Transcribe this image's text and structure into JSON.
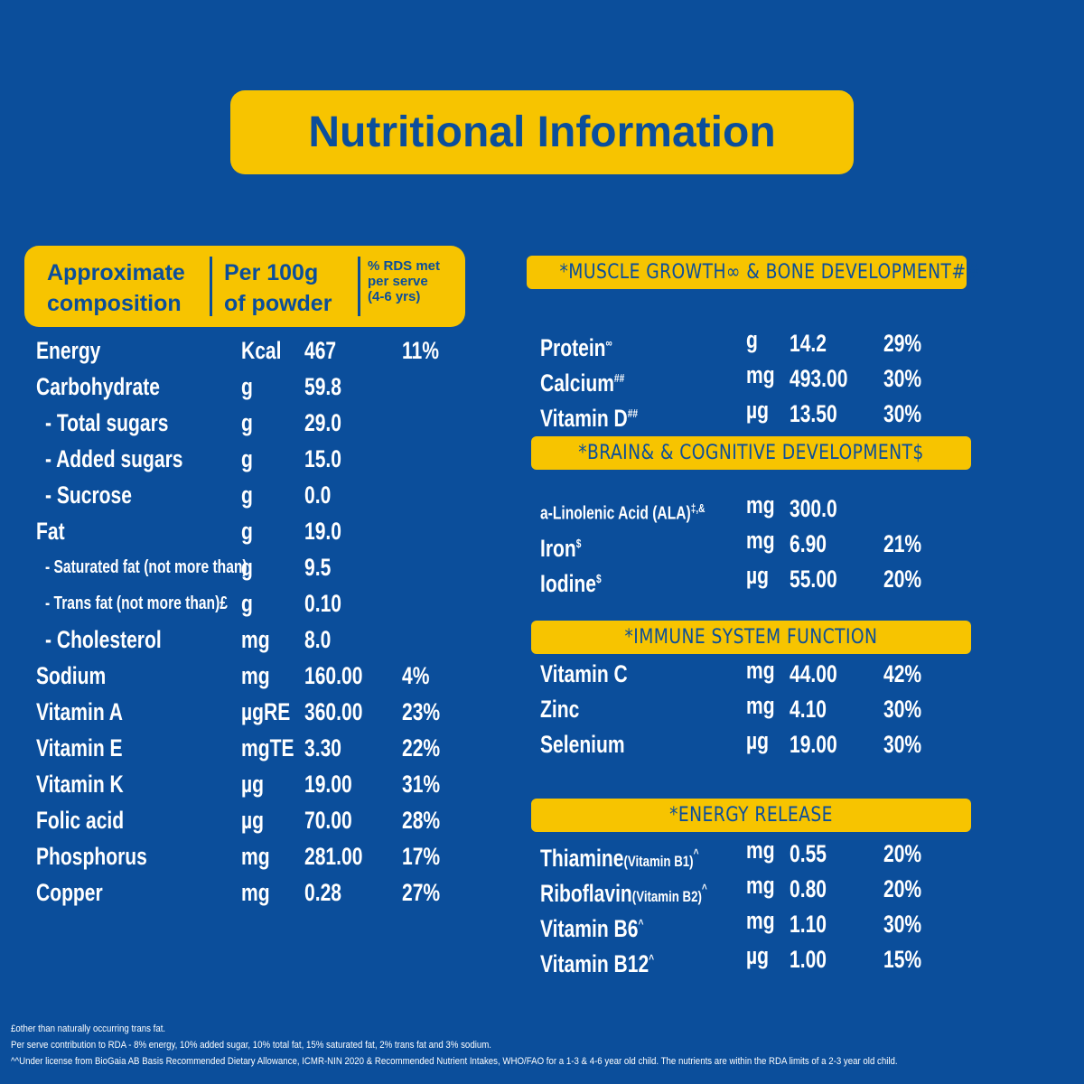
{
  "title": "Nutritional Information",
  "left_table": {
    "headers": [
      [
        "Approximate",
        "composition"
      ],
      [
        "Per 100g",
        "of powder"
      ],
      [
        "% RDS met",
        "per serve",
        "(4-6 yrs)"
      ]
    ],
    "rows": [
      {
        "name": "Energy",
        "unit": "Kcal",
        "value": "467",
        "pct": "11%"
      },
      {
        "name": "Carbohydrate",
        "unit": "g",
        "value": "59.8"
      },
      {
        "name": "- Total sugars",
        "unit": "g",
        "value": "29.0"
      },
      {
        "name": "- Added sugars",
        "unit": "g",
        "value": "15.0"
      },
      {
        "name": "- Sucrose",
        "unit": "g",
        "value": "0.0"
      },
      {
        "name": "Fat",
        "unit": "g",
        "value": "19.0"
      },
      {
        "name": "- Saturated fat (not more than)",
        "unit": "g",
        "value": "9.5"
      },
      {
        "name": "- Trans fat (not more than)£",
        "unit": "g",
        "value": "0.10"
      },
      {
        "name": "- Cholesterol",
        "unit": "mg",
        "value": "8.0"
      },
      {
        "name": "Sodium",
        "unit": "mg",
        "value": "160.00",
        "pct": "4%"
      },
      {
        "name": "Vitamin A",
        "unit": "µgRE",
        "value": "360.00",
        "pct": "23%"
      },
      {
        "name": "Vitamin E",
        "unit": "mgTE",
        "value": "3.30",
        "pct": "22%"
      },
      {
        "name": "Vitamin K",
        "unit": "µg",
        "value": "19.00",
        "pct": "31%"
      },
      {
        "name": "Folic acid",
        "unit": "µg",
        "value": "70.00",
        "pct": "28%"
      },
      {
        "name": "Phosphorus",
        "unit": "mg",
        "value": "281.00",
        "pct": "17%"
      },
      {
        "name": "Copper",
        "unit": "mg",
        "value": "0.28",
        "pct": "27%"
      }
    ]
  },
  "sections": [
    {
      "title": "*MUSCLE GROWTH∞ & BONE DEVELOPMENT##",
      "rows": [
        {
          "name": "Protein",
          "sup": "∞",
          "unit": "g",
          "value": "14.2",
          "pct": "29%"
        },
        {
          "name": "Calcium",
          "sup": "##",
          "unit": "mg",
          "value": "493.00",
          "pct": "30%"
        },
        {
          "name": "Vitamin D",
          "sup": "##",
          "unit": "µg",
          "value": "13.50",
          "pct": "30%"
        }
      ]
    },
    {
      "title": "*BRAIN& & COGNITIVE DEVELOPMENT$",
      "rows": [
        {
          "name": "a-Linolenic Acid (ALA)",
          "sup": "‡,&",
          "unit": "mg",
          "value": "300.0"
        },
        {
          "name": "Iron",
          "sup": "$",
          "unit": "mg",
          "value": "6.90",
          "pct": "21%"
        },
        {
          "name": "Iodine",
          "sup": "$",
          "unit": "µg",
          "value": "55.00",
          "pct": "20%"
        }
      ]
    },
    {
      "title": "*IMMUNE SYSTEM FUNCTION",
      "rows": [
        {
          "name": "Vitamin C",
          "unit": "mg",
          "value": "44.00",
          "pct": "42%"
        },
        {
          "name": "Zinc",
          "unit": "mg",
          "value": "4.10",
          "pct": "30%"
        },
        {
          "name": "Selenium",
          "unit": "µg",
          "value": "19.00",
          "pct": "30%"
        }
      ]
    },
    {
      "title": "*ENERGY RELEASE",
      "rows": [
        {
          "name": "Thiamine",
          "note": "(Vitamin B1)",
          "sup": "^",
          "unit": "mg",
          "value": "0.55",
          "pct": "20%"
        },
        {
          "name": "Riboflavin",
          "note": "(Vitamin B2)",
          "sup": "^",
          "unit": "mg",
          "value": "0.80",
          "pct": "20%"
        },
        {
          "name": "Vitamin B6",
          "sup": "^",
          "unit": "mg",
          "value": "1.10",
          "pct": "30%"
        },
        {
          "name": "Vitamin B12",
          "sup": "^",
          "unit": "µg",
          "value": "1.00",
          "pct": "15%"
        }
      ]
    }
  ],
  "footnotes": [
    "£other than naturally occurring trans fat.",
    "Per serve contribution to RDA - 8% energy, 10% added sugar, 10% total fat,  15% saturated fat, 2% trans fat and 3% sodium.",
    "^^Under license from BioGaia AB Basis Recommended Dietary Allowance, ICMR-NIN 2020 & Recommended Nutrient Intakes, WHO/FAO for a 1-3 & 4-6 year old child. The nutrients are within the RDA limits of a 2-3 year old child."
  ]
}
